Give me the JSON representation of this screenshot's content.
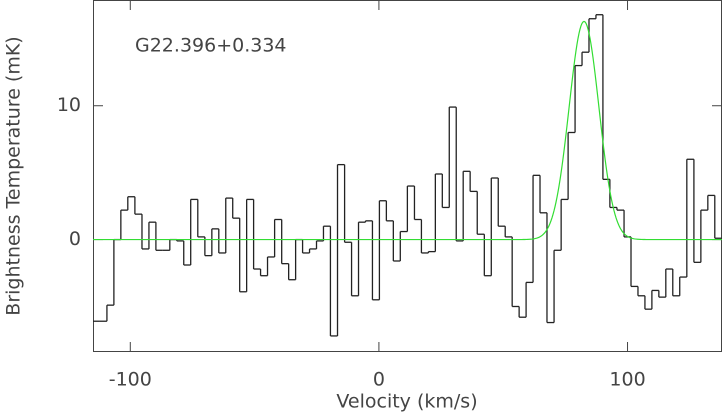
{
  "chart_data": {
    "type": "step",
    "annotation": "G22.396+0.334",
    "xlabel": "Velocity (km/s)",
    "ylabel": "Brightness Temperature (mK)",
    "xlim": [
      -115,
      138
    ],
    "ylim": [
      -8.4,
      17.9
    ],
    "xticks": [
      -100,
      0,
      100
    ],
    "yticks": [
      0,
      10
    ],
    "color": "#222222",
    "x": [
      -113.6,
      -110.8,
      -108.0,
      -105.2,
      -102.4,
      -99.6,
      -96.7,
      -93.9,
      -91.1,
      -88.3,
      -85.5,
      -82.7,
      -79.9,
      -77.1,
      -74.3,
      -71.4,
      -68.6,
      -65.8,
      -63.0,
      -60.2,
      -57.4,
      -54.6,
      -51.8,
      -49.0,
      -46.2,
      -43.4,
      -40.5,
      -37.7,
      -34.9,
      -32.1,
      -29.3,
      -26.5,
      -23.7,
      -20.9,
      -18.1,
      -15.2,
      -12.4,
      -9.6,
      -6.8,
      -4.0,
      -1.2,
      1.6,
      4.4,
      7.2,
      10.0,
      12.9,
      15.7,
      18.5,
      21.3,
      24.1,
      26.9,
      29.7,
      32.5,
      35.3,
      38.1,
      41.0,
      43.8,
      46.6,
      49.4,
      52.2,
      55.0,
      57.8,
      60.6,
      63.4,
      66.2,
      69.0,
      71.9,
      74.7,
      77.5,
      80.3,
      83.1,
      85.9,
      88.7,
      91.5,
      94.3,
      97.2,
      100.0,
      102.8,
      105.6,
      108.4,
      111.2,
      114.0,
      116.8,
      119.6,
      122.4,
      125.3,
      128.1,
      130.9,
      133.7,
      136.5
    ],
    "values": [
      -6.1,
      -6.1,
      -4.9,
      0.0,
      2.2,
      3.2,
      1.9,
      -0.7,
      1.3,
      -0.8,
      -0.8,
      0.0,
      -0.1,
      -1.9,
      3.0,
      0.2,
      -1.2,
      0.8,
      -1.0,
      3.1,
      1.6,
      -3.9,
      3.0,
      -2.2,
      -2.7,
      -1.3,
      1.5,
      -1.8,
      -3.0,
      0.0,
      -1.0,
      -0.7,
      -0.1,
      1.0,
      -7.2,
      5.6,
      -0.2,
      -4.2,
      1.3,
      1.4,
      -4.5,
      2.9,
      1.4,
      -1.6,
      0.6,
      4.0,
      1.5,
      -1.0,
      -0.9,
      4.9,
      2.4,
      9.9,
      -0.1,
      5.1,
      3.6,
      0.4,
      -2.7,
      4.6,
      1.0,
      0.2,
      -5.0,
      -5.8,
      -3.2,
      4.8,
      2.0,
      -6.2,
      -0.8,
      3.0,
      8.0,
      13.0,
      14.0,
      16.5,
      16.8,
      4.5,
      2.4,
      2.2,
      0.2,
      -3.5,
      -4.2,
      -5.2,
      -3.8,
      -4.3,
      -2.2,
      -4.2,
      -2.8,
      6.0,
      -1.7,
      2.2,
      3.3,
      0.1
    ],
    "fit": {
      "amplitude": 16.3,
      "center": 82.5,
      "sigma": 6.0,
      "color": "#33dd33"
    }
  }
}
